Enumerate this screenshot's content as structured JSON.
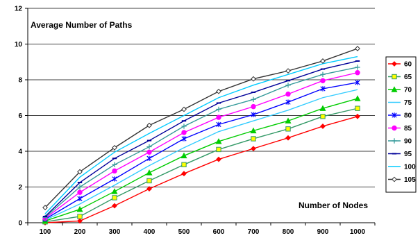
{
  "chart_data": {
    "type": "line",
    "ylabel": "Average Number of Paths",
    "xlabel": "Number of Nodes",
    "x": [
      100,
      200,
      300,
      400,
      500,
      600,
      700,
      800,
      900,
      1000
    ],
    "xticks": [
      "100",
      "200",
      "300",
      "400",
      "500",
      "600",
      "700",
      "800",
      "900",
      "1000"
    ],
    "yticks": [
      "0",
      "2",
      "4",
      "6",
      "8",
      "10",
      "12"
    ],
    "ylim": [
      0,
      12
    ],
    "grid": "horizontal",
    "legend_position": "right",
    "series": [
      {
        "name": "60",
        "color": "#ff0000",
        "marker": "diamond",
        "values": [
          0.0,
          0.1,
          0.95,
          1.9,
          2.75,
          3.55,
          4.15,
          4.75,
          5.4,
          5.95
        ]
      },
      {
        "name": "65",
        "color": "#339966",
        "marker": "square",
        "values": [
          0.05,
          0.35,
          1.4,
          2.35,
          3.25,
          4.1,
          4.7,
          5.25,
          5.95,
          6.4
        ]
      },
      {
        "name": "70",
        "color": "#00cc00",
        "marker": "triangle",
        "values": [
          0.1,
          0.75,
          1.75,
          2.8,
          3.75,
          4.55,
          5.15,
          5.7,
          6.4,
          6.95
        ]
      },
      {
        "name": "75",
        "color": "#33ccff",
        "marker": "none",
        "values": [
          0.15,
          1.05,
          2.1,
          3.2,
          4.2,
          5.1,
          5.7,
          6.3,
          7.0,
          7.45
        ]
      },
      {
        "name": "80",
        "color": "#0000ff",
        "marker": "star",
        "values": [
          0.2,
          1.35,
          2.45,
          3.6,
          4.7,
          5.5,
          6.05,
          6.75,
          7.5,
          7.85
        ]
      },
      {
        "name": "85",
        "color": "#ff00ff",
        "marker": "circle",
        "values": [
          0.25,
          1.7,
          2.9,
          3.95,
          5.05,
          5.9,
          6.5,
          7.2,
          7.95,
          8.4
        ]
      },
      {
        "name": "90",
        "color": "#339999",
        "marker": "plus",
        "values": [
          0.3,
          2.0,
          3.25,
          4.25,
          5.4,
          6.35,
          6.9,
          7.7,
          8.3,
          8.7
        ]
      },
      {
        "name": "95",
        "color": "#000099",
        "marker": "dash",
        "values": [
          0.35,
          2.25,
          3.6,
          4.6,
          5.7,
          6.7,
          7.3,
          7.95,
          8.6,
          9.05
        ]
      },
      {
        "name": "100",
        "color": "#00ccff",
        "marker": "none",
        "values": [
          0.5,
          2.55,
          3.95,
          5.0,
          6.0,
          7.0,
          7.7,
          8.3,
          8.9,
          9.3
        ]
      },
      {
        "name": "105",
        "color": "#333333",
        "marker": "open-diamond",
        "values": [
          0.85,
          2.85,
          4.2,
          5.45,
          6.35,
          7.35,
          8.05,
          8.5,
          9.05,
          9.75
        ]
      }
    ]
  }
}
